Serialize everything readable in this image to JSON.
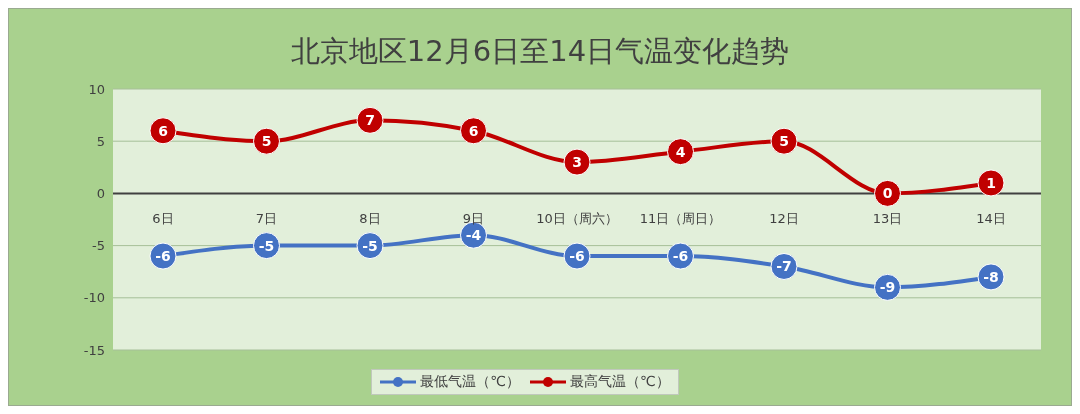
{
  "chart_data": {
    "type": "line",
    "title": "北京地区12月6日至14日气温变化趋势",
    "categories": [
      "6日",
      "7日",
      "8日",
      "9日",
      "10日（周六）",
      "11日（周日）",
      "12日",
      "13日",
      "14日"
    ],
    "series": [
      {
        "name": "最高气温（℃）",
        "color": "#c00000",
        "values": [
          6,
          5,
          7,
          6,
          3,
          4,
          5,
          0,
          1
        ]
      },
      {
        "name": "最低气温（℃）",
        "color": "#4472c4",
        "values": [
          -6,
          -5,
          -5,
          -4,
          -6,
          -6,
          -7,
          -9,
          -8
        ]
      }
    ],
    "ylim": [
      -15,
      10
    ],
    "yticks": [
      -15,
      -10,
      -5,
      0,
      5,
      10
    ],
    "grid": "y",
    "legend": "bottom",
    "marker": "circle",
    "data_labels": true
  }
}
